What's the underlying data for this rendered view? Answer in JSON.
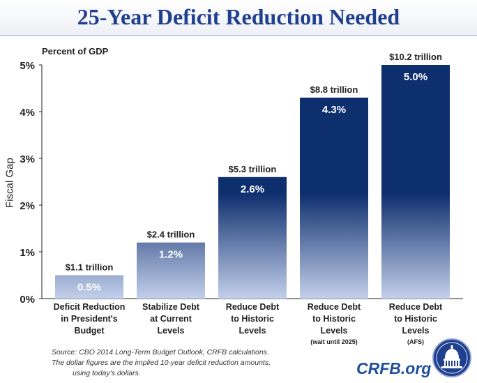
{
  "title": "25-Year Deficit Reduction Needed",
  "units_note": "Percent of GDP",
  "source_line1": "Source: CBO 2014 Long-Term Budget Outlook, CRFB calculations.",
  "source_line2": "The dollar figures are the implied 10-year deficit reduction amounts,",
  "source_line3": "using today's dollars.",
  "brand": "CRFB.org",
  "chart_data": {
    "type": "bar",
    "title": "25-Year Deficit Reduction Needed",
    "ylabel": "Fiscal Gap",
    "xlabel": "",
    "ylim": [
      0,
      5
    ],
    "yticks": [
      0,
      1,
      2,
      3,
      4,
      5
    ],
    "ytick_labels": [
      "0%",
      "1%",
      "2%",
      "3%",
      "4%",
      "5%"
    ],
    "grid": false,
    "categories": [
      {
        "lines": [
          "Deficit Reduction",
          "in President's",
          "Budget"
        ],
        "note": ""
      },
      {
        "lines": [
          "Stabilize Debt",
          "at Current",
          "Levels"
        ],
        "note": ""
      },
      {
        "lines": [
          "Reduce Debt",
          "to Historic",
          "Levels"
        ],
        "note": ""
      },
      {
        "lines": [
          "Reduce Debt",
          "to Historic",
          "Levels"
        ],
        "note": "(wait until 2025)"
      },
      {
        "lines": [
          "Reduce Debt",
          "to Historic",
          "Levels"
        ],
        "note": "(AFS)"
      }
    ],
    "values": [
      0.5,
      1.2,
      2.6,
      4.3,
      5.0
    ],
    "value_labels": [
      "0.5%",
      "1.2%",
      "2.6%",
      "4.3%",
      "5.0%"
    ],
    "dollar_labels": [
      "$1.1 trillion",
      "$2.4 trillion",
      "$5.3 trillion",
      "$8.8 trillion",
      "$10.2 trillion"
    ],
    "colors": {
      "bar_top": "#0e2f6e",
      "bar_bottom": "#c3d0eb",
      "axis": "#222222"
    }
  }
}
